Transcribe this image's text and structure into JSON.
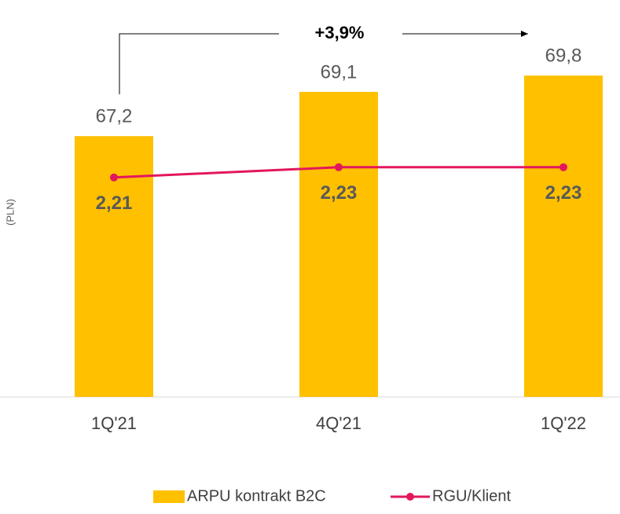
{
  "chart_data": {
    "type": "bar-line",
    "y_label": "(PLN)",
    "annotation": "+3,9%",
    "categories": [
      "1Q'21",
      "4Q'21",
      "1Q'22"
    ],
    "series": [
      {
        "name": "ARPU kontrakt B2C",
        "type": "bar",
        "color": "#ffc000",
        "values": [
          67.2,
          69.1,
          69.8
        ],
        "value_labels": [
          "67,2",
          "69,1",
          "69,8"
        ]
      },
      {
        "name": "RGU/Klient",
        "type": "line",
        "axis": "y2",
        "color": "#e3175d",
        "values": [
          2.21,
          2.23,
          2.23
        ],
        "value_labels": [
          "2,21",
          "2,23",
          "2,23"
        ]
      }
    ],
    "ylim": [
      56,
      72
    ],
    "y2lim": [
      1.78,
      2.51
    ],
    "legend": "bottom"
  }
}
